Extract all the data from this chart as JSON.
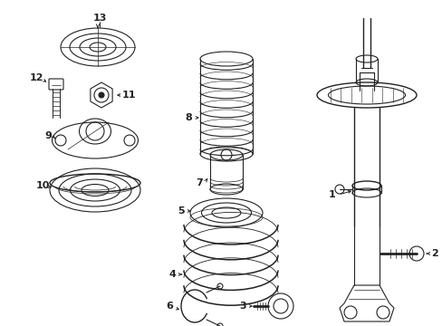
{
  "bg_color": "#ffffff",
  "line_color": "#222222",
  "label_color": "#000000",
  "figsize": [
    4.89,
    3.6
  ],
  "dpi": 100,
  "xlim": [
    0,
    489
  ],
  "ylim": [
    0,
    360
  ]
}
